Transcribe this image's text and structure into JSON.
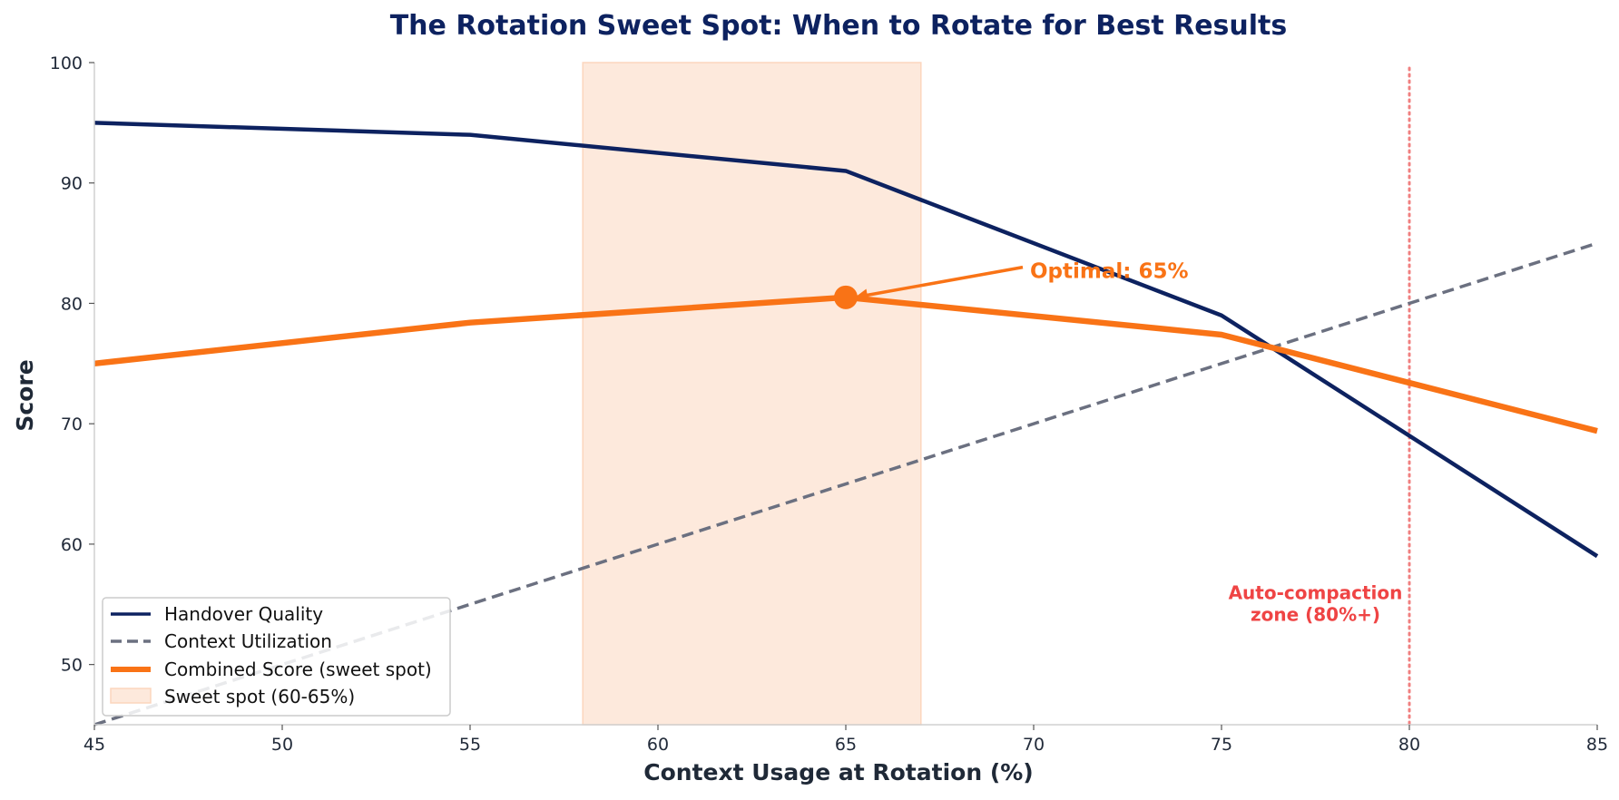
{
  "colors": {
    "handover": "#0d2260",
    "utilization": "#6b7080",
    "combined": "#f97316",
    "band_fill": "#fde9dc",
    "band_stroke": "#fcd6bd",
    "threshold": "#f08080",
    "zone_text": "#ef4444",
    "title": "#0d2260",
    "axis_line": "#d0d0d0"
  },
  "chart_data": {
    "type": "line",
    "title": "The Rotation Sweet Spot: When to Rotate for Best Results",
    "xlabel": "Context Usage at Rotation (%)",
    "ylabel": "Score",
    "xlim": [
      45,
      85
    ],
    "ylim": [
      45,
      100
    ],
    "xticks": [
      "45",
      "50",
      "55",
      "60",
      "65",
      "70",
      "75",
      "80",
      "85"
    ],
    "yticks": [
      "50",
      "60",
      "70",
      "80",
      "90",
      "100"
    ],
    "grid": false,
    "legend_position": "lower-left",
    "x": [
      45,
      55,
      65,
      75,
      85
    ],
    "series": [
      {
        "name": "Handover Quality",
        "style": "solid",
        "values": [
          95,
          94,
          91,
          79,
          59
        ]
      },
      {
        "name": "Context Utilization",
        "style": "dashed",
        "values": [
          45,
          55,
          65,
          75,
          85
        ]
      },
      {
        "name": "Combined Score (sweet spot)",
        "style": "solid-thick",
        "values": [
          75,
          78.4,
          80.5,
          77.4,
          69.4
        ]
      }
    ],
    "band": {
      "label": "Sweet spot (60-65%)",
      "x_start": 58,
      "x_end": 67
    },
    "optimal_point": {
      "x": 65,
      "y": 80.5,
      "label": "Optimal: 65%",
      "label_x": 70,
      "label_y": 83
    },
    "threshold": {
      "x": 80,
      "label_line1": "Auto-compaction",
      "label_line2": "zone (80%+)",
      "label_x": 77.5,
      "label_y": 55
    }
  }
}
